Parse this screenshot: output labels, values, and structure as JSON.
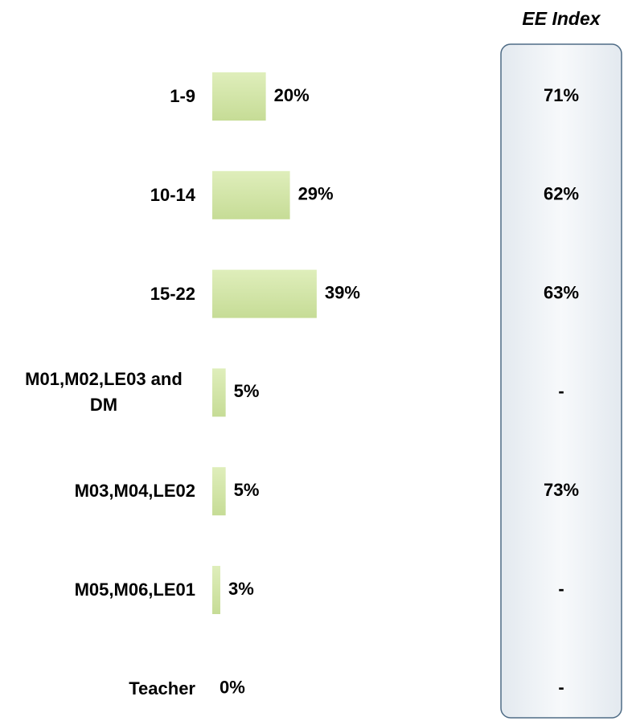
{
  "chart_data": {
    "type": "bar",
    "orientation": "horizontal",
    "categories": [
      "1-9",
      "10-14",
      "15-22",
      "M01,M02,LE03 and DM",
      "M03,M04,LE02",
      "M05,M06,LE01",
      "Teacher"
    ],
    "values": [
      20,
      29,
      39,
      5,
      5,
      3,
      0
    ],
    "value_labels": [
      "20%",
      "29%",
      "39%",
      "5%",
      "5%",
      "3%",
      "0%"
    ],
    "color": "#c6dc96",
    "ee_index": {
      "title": "EE Index",
      "labels": [
        "71%",
        "62%",
        "63%",
        "-",
        "73%",
        "-",
        "-"
      ]
    }
  }
}
